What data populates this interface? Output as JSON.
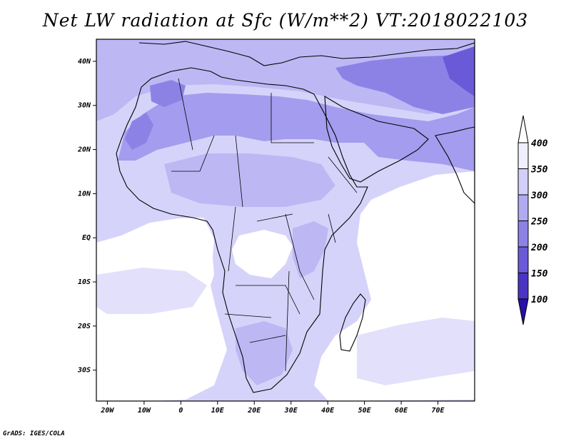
{
  "title": "Net LW radiation at Sfc (W/m**2) VT:2018022103",
  "credit": "GrADS: IGES/COLA",
  "map": {
    "lon_range": [
      -23,
      80
    ],
    "lat_range": [
      -37,
      45
    ],
    "lon_ticks": [
      {
        "value": -20,
        "label": "20W"
      },
      {
        "value": -10,
        "label": "10W"
      },
      {
        "value": 0,
        "label": "0"
      },
      {
        "value": 10,
        "label": "10E"
      },
      {
        "value": 20,
        "label": "20E"
      },
      {
        "value": 30,
        "label": "30E"
      },
      {
        "value": 40,
        "label": "40E"
      },
      {
        "value": 50,
        "label": "50E"
      },
      {
        "value": 60,
        "label": "60E"
      },
      {
        "value": 70,
        "label": "70E"
      }
    ],
    "lat_ticks": [
      {
        "value": 40,
        "label": "40N"
      },
      {
        "value": 30,
        "label": "30N"
      },
      {
        "value": 20,
        "label": "20N"
      },
      {
        "value": 10,
        "label": "10N"
      },
      {
        "value": 0,
        "label": "EQ"
      },
      {
        "value": -10,
        "label": "10S"
      },
      {
        "value": -20,
        "label": "20S"
      },
      {
        "value": -30,
        "label": "30S"
      }
    ]
  },
  "colorbar": {
    "levels": [
      "100",
      "150",
      "200",
      "250",
      "300",
      "350",
      "400"
    ],
    "colors": [
      "#2a10a8",
      "#4a34c4",
      "#6a5ad8",
      "#8c82e6",
      "#b0aaf0",
      "#d2cff8",
      "#f0efff"
    ],
    "triangle_low_color": "#2a10a8",
    "triangle_high_color": "#ffffff"
  },
  "palette": {
    "ocean_white": "#ffffff",
    "very_light": "#f0efff",
    "light": "#d6d3fa",
    "mid_light": "#bdb8f4",
    "mid": "#a49cee",
    "darker": "#8c82e6",
    "darkest": "#6a5ad8"
  }
}
